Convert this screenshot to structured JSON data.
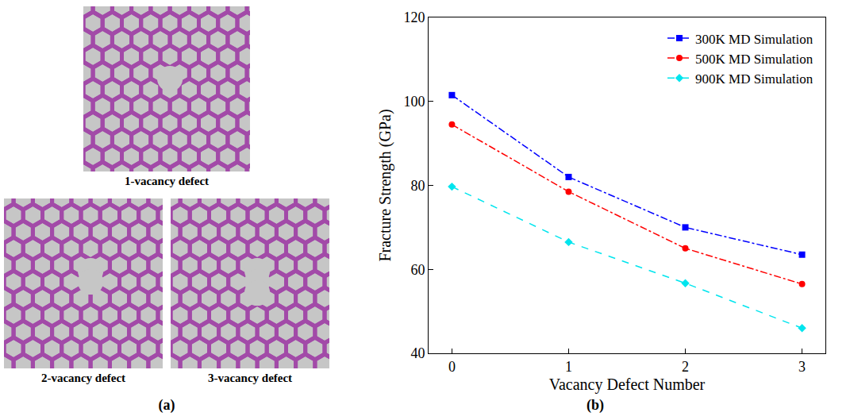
{
  "chart_data": {
    "type": "line",
    "x_label": "Vacancy Defect Number",
    "y_label": "Fracture Strength (GPa)",
    "x": [
      0,
      1,
      2,
      3
    ],
    "series": [
      {
        "name": "300K MD Simulation",
        "color": "#0000ff",
        "marker": "square",
        "line_style": "dashdot",
        "values": [
          101.5,
          82,
          70,
          63.5
        ]
      },
      {
        "name": "500K MD Simulation",
        "color": "#ff0000",
        "marker": "circle",
        "line_style": "dashdot",
        "values": [
          94.5,
          78.5,
          65,
          56.5
        ]
      },
      {
        "name": "900K MD Simulation",
        "color": "#00e5ee",
        "marker": "diamond",
        "line_style": "dash",
        "values": [
          79.7,
          66.5,
          56.7,
          46
        ]
      }
    ],
    "xlim": [
      -0.2,
      3.2
    ],
    "xticks": [
      0,
      1,
      2,
      3
    ],
    "ylim": [
      40,
      120
    ],
    "yticks": [
      40,
      60,
      80,
      100,
      120
    ],
    "grid": false,
    "legend": "upper right"
  },
  "figure": {
    "panel_labels": [
      "(a)",
      "(b)"
    ],
    "images": [
      {
        "label": "1-vacancy defect",
        "vacancies": 1
      },
      {
        "label": "2-vacancy defect",
        "vacancies": 2
      },
      {
        "label": "3-vacancy defect",
        "vacancies": 3
      }
    ]
  }
}
